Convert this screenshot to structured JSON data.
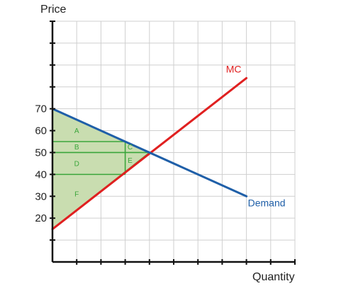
{
  "chart_data": {
    "type": "line",
    "title": "",
    "ylabel": "Price",
    "xlabel": "Quantity",
    "ylim": [
      0,
      110
    ],
    "xlim": [
      0,
      10
    ],
    "grid": true,
    "yticks": [
      20,
      30,
      40,
      50,
      60,
      70
    ],
    "series": [
      {
        "name": "MC",
        "color": "#e02020",
        "points": [
          [
            0,
            15
          ],
          [
            8,
            84
          ]
        ]
      },
      {
        "name": "Demand",
        "color": "#1f5fa8",
        "points": [
          [
            0,
            70
          ],
          [
            8,
            30
          ]
        ]
      }
    ],
    "equilibrium": {
      "x": 4,
      "y": 50
    },
    "shaded_region": {
      "color": "#c9ddb0",
      "edge": "#3aa53a",
      "points": [
        [
          0,
          70
        ],
        [
          4,
          50
        ],
        [
          0,
          15
        ]
      ]
    },
    "region_lines": [
      {
        "x1": 0,
        "y1": 55,
        "x2": 3,
        "y2": 55
      },
      {
        "x1": 0,
        "y1": 50,
        "x2": 4,
        "y2": 50
      },
      {
        "x1": 0,
        "y1": 40,
        "x2": 3,
        "y2": 40
      },
      {
        "x1": 3,
        "y1": 55,
        "x2": 3,
        "y2": 40
      }
    ],
    "region_labels": [
      {
        "text": "A",
        "x": 1,
        "y": 60
      },
      {
        "text": "B",
        "x": 1,
        "y": 52.5
      },
      {
        "text": "C",
        "x": 3.2,
        "y": 52.5
      },
      {
        "text": "D",
        "x": 1,
        "y": 45
      },
      {
        "text": "E",
        "x": 3.2,
        "y": 46.5
      },
      {
        "text": "F",
        "x": 1,
        "y": 31
      }
    ]
  }
}
